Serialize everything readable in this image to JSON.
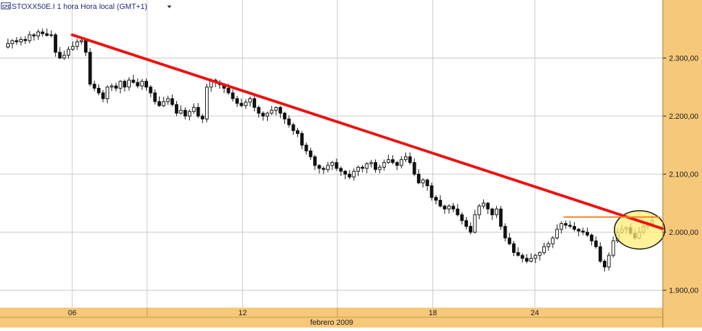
{
  "header": {
    "badge": "CFD",
    "title": "STOXX50E.I 1 hora Hora local (GMT+1)"
  },
  "colors": {
    "panel": "#f5c87a",
    "trendline": "#ee1111",
    "resistance": "#ff7f1f",
    "highlight": "#ffee77",
    "candle_up": "#ffffff",
    "candle_down": "#111111",
    "grid": "#c8c8c8"
  },
  "chart_data": {
    "type": "candlestick",
    "title": "STOXX50E.I 1 hora Hora local (GMT+1)",
    "xlabel": "febrero 2009",
    "ylim": [
      1870,
      2400
    ],
    "xlim": [
      0,
      100
    ],
    "y_ticks": [
      1900,
      2000,
      2100,
      2200,
      2300
    ],
    "y_tick_labels": [
      "1.900,00",
      "2.000,00",
      "2.100,00",
      "2.200,00",
      "2.300,00"
    ],
    "x_ticks": [
      {
        "label": "06",
        "x": 10.9
      },
      {
        "label": "12",
        "x": 36.6
      },
      {
        "label": "18",
        "x": 65.3
      },
      {
        "label": "24",
        "x": 80.7
      }
    ],
    "x_boundaries": [
      22.2,
      50.9
    ],
    "grid": true,
    "closes": [
      2325,
      2330,
      2328,
      2332,
      2330,
      2340,
      2338,
      2345,
      2342,
      2339,
      2340,
      2310,
      2300,
      2305,
      2315,
      2320,
      2328,
      2330,
      2310,
      2255,
      2248,
      2240,
      2230,
      2250,
      2252,
      2248,
      2260,
      2250,
      2262,
      2258,
      2252,
      2260,
      2250,
      2240,
      2225,
      2218,
      2225,
      2230,
      2220,
      2205,
      2210,
      2200,
      2208,
      2215,
      2200,
      2195,
      2250,
      2262,
      2258,
      2254,
      2248,
      2240,
      2230,
      2222,
      2218,
      2224,
      2230,
      2215,
      2205,
      2200,
      2205,
      2210,
      2215,
      2205,
      2195,
      2185,
      2175,
      2170,
      2150,
      2140,
      2130,
      2115,
      2110,
      2108,
      2115,
      2120,
      2110,
      2105,
      2100,
      2095,
      2105,
      2112,
      2110,
      2118,
      2120,
      2108,
      2112,
      2120,
      2125,
      2120,
      2115,
      2125,
      2130,
      2120,
      2100,
      2085,
      2090,
      2080,
      2060,
      2055,
      2045,
      2040,
      2045,
      2040,
      2030,
      2020,
      2010,
      2000,
      2030,
      2045,
      2050,
      2040,
      2030,
      2040,
      2010,
      1990,
      1980,
      1965,
      1960,
      1955,
      1950,
      1955,
      1960,
      1965,
      1975,
      1980,
      1990,
      2005,
      2015,
      2012,
      2010,
      2005,
      2002,
      2000,
      1995,
      1985,
      1975,
      1950,
      1940,
      1960,
      1985,
      2000,
      2005,
      2008,
      1998,
      1990,
      2000,
      2010,
      2015,
      2020
    ],
    "series": [
      {
        "name": "",
        "type": "candlestick"
      }
    ],
    "annotations": [
      {
        "type": "trendline",
        "x1": 10.9,
        "y1": 2340,
        "x2": 100,
        "y2": 2006
      },
      {
        "type": "hline",
        "x1": 85.0,
        "x2": 99.6,
        "y": 2026
      },
      {
        "type": "ellipse",
        "cx": 96.5,
        "cy": 2004,
        "rx": 3.8,
        "ry": 33
      }
    ]
  }
}
